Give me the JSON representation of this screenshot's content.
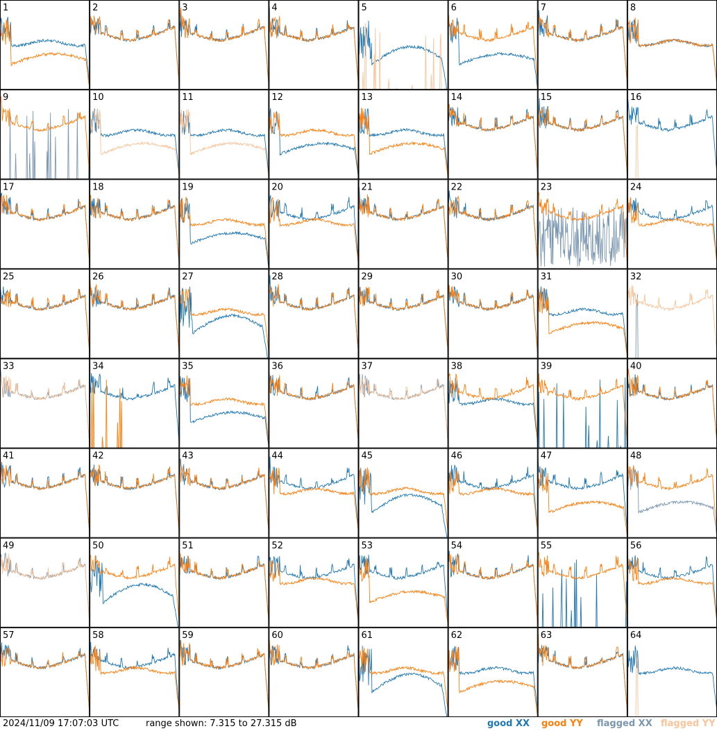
{
  "footer": {
    "timestamp": "2024/11/09 17:07:03 UTC",
    "range": "range shown: 7.315 to 27.315 dB"
  },
  "legend": [
    {
      "label": "good XX",
      "color": "#1f77b4"
    },
    {
      "label": "good YY",
      "color": "#ff7f0e"
    },
    {
      "label": "flagged XX",
      "color": "#7b97b0"
    },
    {
      "label": "flagged YY",
      "color": "#f9c49a"
    }
  ],
  "chart_data": {
    "type": "line",
    "range_db": [
      7.315,
      27.315
    ],
    "panels": [
      {
        "id": "1",
        "xx": "good",
        "yy": "good",
        "xx_shape": "flat-mid",
        "yy_shape": "sag-low"
      },
      {
        "id": "2",
        "xx": "good",
        "yy": "good",
        "xx_shape": "typical",
        "yy_shape": "typical"
      },
      {
        "id": "3",
        "xx": "good",
        "yy": "good",
        "xx_shape": "typical",
        "yy_shape": "typical"
      },
      {
        "id": "4",
        "xx": "good",
        "yy": "good",
        "xx_shape": "typical",
        "yy_shape": "typical"
      },
      {
        "id": "5",
        "xx": "good",
        "yy": "flagged",
        "xx_shape": "dip-mid",
        "yy_shape": "spikes-bottom"
      },
      {
        "id": "6",
        "xx": "good",
        "yy": "good",
        "xx_shape": "sag-low",
        "yy_shape": "typical"
      },
      {
        "id": "7",
        "xx": "good",
        "yy": "good",
        "xx_shape": "typical",
        "yy_shape": "typical"
      },
      {
        "id": "8",
        "xx": "good",
        "yy": "good",
        "xx_shape": "flat-mid",
        "yy_shape": "flat-mid"
      },
      {
        "id": "9",
        "xx": "flagged",
        "yy": "good",
        "xx_shape": "spikes-bottom",
        "yy_shape": "typical"
      },
      {
        "id": "10",
        "xx": "good",
        "yy": "flagged",
        "xx_shape": "flat-mid",
        "yy_shape": "sag-low"
      },
      {
        "id": "11",
        "xx": "good",
        "yy": "flagged",
        "xx_shape": "flat-mid",
        "yy_shape": "sag-low"
      },
      {
        "id": "12",
        "xx": "good",
        "yy": "good",
        "xx_shape": "sag-low",
        "yy_shape": "flat-mid"
      },
      {
        "id": "13",
        "xx": "good",
        "yy": "good",
        "xx_shape": "flat-mid",
        "yy_shape": "sag-low"
      },
      {
        "id": "14",
        "xx": "good",
        "yy": "good",
        "xx_shape": "typical",
        "yy_shape": "typical"
      },
      {
        "id": "15",
        "xx": "good",
        "yy": "good",
        "xx_shape": "typical",
        "yy_shape": "typical"
      },
      {
        "id": "16",
        "xx": "good",
        "yy": "flagged",
        "xx_shape": "typical",
        "yy_shape": "spike-one"
      },
      {
        "id": "17",
        "xx": "good",
        "yy": "good",
        "xx_shape": "typical",
        "yy_shape": "typical"
      },
      {
        "id": "18",
        "xx": "good",
        "yy": "good",
        "xx_shape": "typical",
        "yy_shape": "typical"
      },
      {
        "id": "19",
        "xx": "good",
        "yy": "good",
        "xx_shape": "sag-low",
        "yy_shape": "flat-mid"
      },
      {
        "id": "20",
        "xx": "good",
        "yy": "good",
        "xx_shape": "typical",
        "yy_shape": "flat-mid"
      },
      {
        "id": "21",
        "xx": "good",
        "yy": "good",
        "xx_shape": "typical",
        "yy_shape": "typical"
      },
      {
        "id": "22",
        "xx": "good",
        "yy": "good",
        "xx_shape": "typical",
        "yy_shape": "typical"
      },
      {
        "id": "23",
        "xx": "flagged",
        "yy": "good",
        "xx_shape": "noisy",
        "yy_shape": "typical"
      },
      {
        "id": "24",
        "xx": "good",
        "yy": "good",
        "xx_shape": "typical",
        "yy_shape": "flat-mid"
      },
      {
        "id": "25",
        "xx": "good",
        "yy": "good",
        "xx_shape": "typical",
        "yy_shape": "typical"
      },
      {
        "id": "26",
        "xx": "good",
        "yy": "good",
        "xx_shape": "typical",
        "yy_shape": "typical"
      },
      {
        "id": "27",
        "xx": "good",
        "yy": "good",
        "xx_shape": "dip-mid",
        "yy_shape": "flat-mid"
      },
      {
        "id": "28",
        "xx": "good",
        "yy": "good",
        "xx_shape": "typical",
        "yy_shape": "typical"
      },
      {
        "id": "29",
        "xx": "good",
        "yy": "good",
        "xx_shape": "typical",
        "yy_shape": "typical"
      },
      {
        "id": "30",
        "xx": "good",
        "yy": "good",
        "xx_shape": "typical",
        "yy_shape": "typical"
      },
      {
        "id": "31",
        "xx": "good",
        "yy": "good",
        "xx_shape": "flat-mid",
        "yy_shape": "sag-low"
      },
      {
        "id": "32",
        "xx": "flagged",
        "yy": "flagged",
        "xx_shape": "spike-one",
        "yy_shape": "typical"
      },
      {
        "id": "33",
        "xx": "flagged",
        "yy": "flagged",
        "xx_shape": "typical",
        "yy_shape": "typical"
      },
      {
        "id": "34",
        "xx": "good",
        "yy": "good",
        "xx_shape": "typical",
        "yy_shape": "spikes-bottom"
      },
      {
        "id": "35",
        "xx": "good",
        "yy": "good",
        "xx_shape": "sag-low",
        "yy_shape": "flat-mid"
      },
      {
        "id": "36",
        "xx": "good",
        "yy": "good",
        "xx_shape": "typical",
        "yy_shape": "typical"
      },
      {
        "id": "37",
        "xx": "flagged",
        "yy": "flagged",
        "xx_shape": "typical",
        "yy_shape": "typical"
      },
      {
        "id": "38",
        "xx": "good",
        "yy": "good",
        "xx_shape": "flat-mid",
        "yy_shape": "typical"
      },
      {
        "id": "39",
        "xx": "good",
        "yy": "good",
        "xx_shape": "spikes-bottom",
        "yy_shape": "typical"
      },
      {
        "id": "40",
        "xx": "good",
        "yy": "good",
        "xx_shape": "typical",
        "yy_shape": "typical"
      },
      {
        "id": "41",
        "xx": "good",
        "yy": "good",
        "xx_shape": "typical",
        "yy_shape": "typical"
      },
      {
        "id": "42",
        "xx": "good",
        "yy": "good",
        "xx_shape": "typical",
        "yy_shape": "typical"
      },
      {
        "id": "43",
        "xx": "good",
        "yy": "good",
        "xx_shape": "typical",
        "yy_shape": "typical"
      },
      {
        "id": "44",
        "xx": "good",
        "yy": "good",
        "xx_shape": "typical",
        "yy_shape": "flat-mid"
      },
      {
        "id": "45",
        "xx": "good",
        "yy": "good",
        "xx_shape": "dip-mid",
        "yy_shape": "flat-mid"
      },
      {
        "id": "46",
        "xx": "good",
        "yy": "good",
        "xx_shape": "typical",
        "yy_shape": "flat-mid"
      },
      {
        "id": "47",
        "xx": "good",
        "yy": "good",
        "xx_shape": "typical",
        "yy_shape": "sag-low"
      },
      {
        "id": "48",
        "xx": "flagged",
        "yy": "good",
        "xx_shape": "sag-low",
        "yy_shape": "typical"
      },
      {
        "id": "49",
        "xx": "flagged",
        "yy": "flagged",
        "xx_shape": "typical",
        "yy_shape": "typical"
      },
      {
        "id": "50",
        "xx": "good",
        "yy": "good",
        "xx_shape": "dip-mid",
        "yy_shape": "typical"
      },
      {
        "id": "51",
        "xx": "good",
        "yy": "good",
        "xx_shape": "typical",
        "yy_shape": "typical"
      },
      {
        "id": "52",
        "xx": "good",
        "yy": "good",
        "xx_shape": "typical",
        "yy_shape": "flat-mid"
      },
      {
        "id": "53",
        "xx": "good",
        "yy": "good",
        "xx_shape": "typical",
        "yy_shape": "sag-low"
      },
      {
        "id": "54",
        "xx": "good",
        "yy": "good",
        "xx_shape": "typical",
        "yy_shape": "typical"
      },
      {
        "id": "55",
        "xx": "good",
        "yy": "good",
        "xx_shape": "spikes-bottom",
        "yy_shape": "typical"
      },
      {
        "id": "56",
        "xx": "good",
        "yy": "good",
        "xx_shape": "typical",
        "yy_shape": "flat-mid"
      },
      {
        "id": "57",
        "xx": "good",
        "yy": "good",
        "xx_shape": "typical",
        "yy_shape": "typical"
      },
      {
        "id": "58",
        "xx": "good",
        "yy": "good",
        "xx_shape": "typical",
        "yy_shape": "flat-mid"
      },
      {
        "id": "59",
        "xx": "good",
        "yy": "good",
        "xx_shape": "typical",
        "yy_shape": "typical"
      },
      {
        "id": "60",
        "xx": "good",
        "yy": "good",
        "xx_shape": "typical",
        "yy_shape": "typical"
      },
      {
        "id": "61",
        "xx": "good",
        "yy": "good",
        "xx_shape": "dip-mid",
        "yy_shape": "flat-mid"
      },
      {
        "id": "62",
        "xx": "good",
        "yy": "good",
        "xx_shape": "flat-mid",
        "yy_shape": "sag-low"
      },
      {
        "id": "63",
        "xx": "good",
        "yy": "good",
        "xx_shape": "typical",
        "yy_shape": "typical"
      },
      {
        "id": "64",
        "xx": "good",
        "yy": "flagged",
        "xx_shape": "flat-mid",
        "yy_shape": "spike-one"
      }
    ]
  }
}
